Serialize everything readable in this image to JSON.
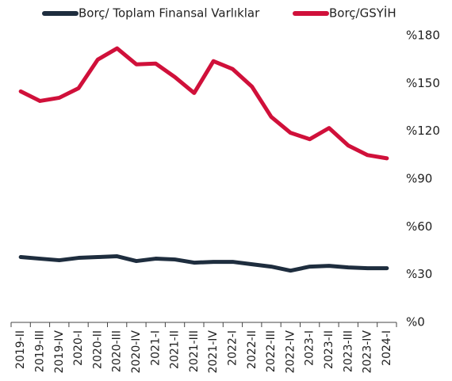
{
  "chart_data": {
    "type": "line",
    "categories": [
      "2019-II",
      "2019-III",
      "2019-IV",
      "2020-I",
      "2020-II",
      "2020-III",
      "2020-IV",
      "2021-I",
      "2021-II",
      "2021-III",
      "2021-IV",
      "2022-I",
      "2022-II",
      "2022-III",
      "2022-IV",
      "2023-I",
      "2023-II",
      "2023-III",
      "2023-IV",
      "2024-I"
    ],
    "series": [
      {
        "name": "Borç/ Toplam Finansal Varlıklar",
        "color": "#1e2d3e",
        "values": [
          41,
          40,
          39,
          40.5,
          41,
          41.5,
          38.5,
          40,
          39.5,
          37.5,
          38,
          38,
          36.5,
          35,
          32.5,
          35,
          35.5,
          34.5,
          34,
          34
        ]
      },
      {
        "name": "Borç/GSYİH",
        "color": "#d0103a",
        "values": [
          145,
          139,
          141,
          147,
          165,
          172,
          162,
          162.5,
          154,
          144,
          164,
          159,
          148,
          129,
          119,
          115,
          122,
          111,
          105,
          103
        ]
      }
    ],
    "ylim": [
      0,
      180
    ],
    "yticks": [
      {
        "value": 0,
        "label": "%0"
      },
      {
        "value": 30,
        "label": "%30"
      },
      {
        "value": 60,
        "label": "%60"
      },
      {
        "value": 90,
        "label": "%90"
      },
      {
        "value": 120,
        "label": "%120"
      },
      {
        "value": 150,
        "label": "%150"
      },
      {
        "value": 180,
        "label": "%180"
      }
    ],
    "legend": "top",
    "grid": false
  }
}
